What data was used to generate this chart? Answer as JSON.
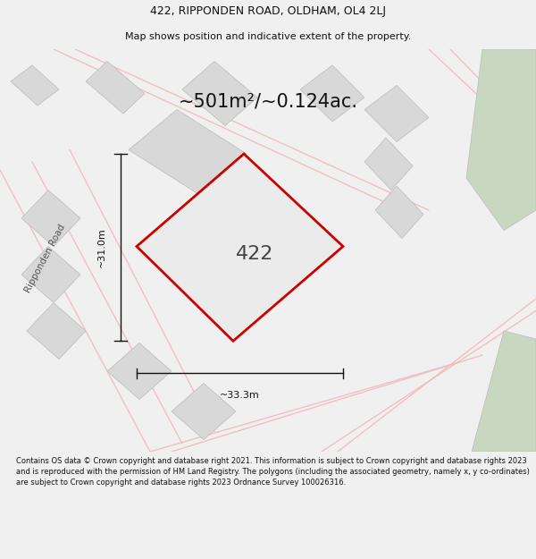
{
  "title_line1": "422, RIPPONDEN ROAD, OLDHAM, OL4 2LJ",
  "title_line2": "Map shows position and indicative extent of the property.",
  "area_text": "~501m²/~0.124ac.",
  "property_number": "422",
  "dim_width": "~33.3m",
  "dim_height": "~31.0m",
  "road_label": "Ripponden Road",
  "footer_text": "Contains OS data © Crown copyright and database right 2021. This information is subject to Crown copyright and database rights 2023 and is reproduced with the permission of HM Land Registry. The polygons (including the associated geometry, namely x, y co-ordinates) are subject to Crown copyright and database rights 2023 Ordnance Survey 100026316.",
  "bg_color": "#f0f0f0",
  "map_bg": "#f8f8f8",
  "property_fill": "#ebebeb",
  "property_edge": "#cc0000",
  "road_color": "#f0b8b8",
  "building_color": "#d8d8d8",
  "building_edge": "#bbbbbb",
  "green_color": "#c8d8c0",
  "title_fontsize": 9,
  "subtitle_fontsize": 8,
  "area_fontsize": 15,
  "number_fontsize": 16,
  "dim_fontsize": 8,
  "footer_fontsize": 6
}
